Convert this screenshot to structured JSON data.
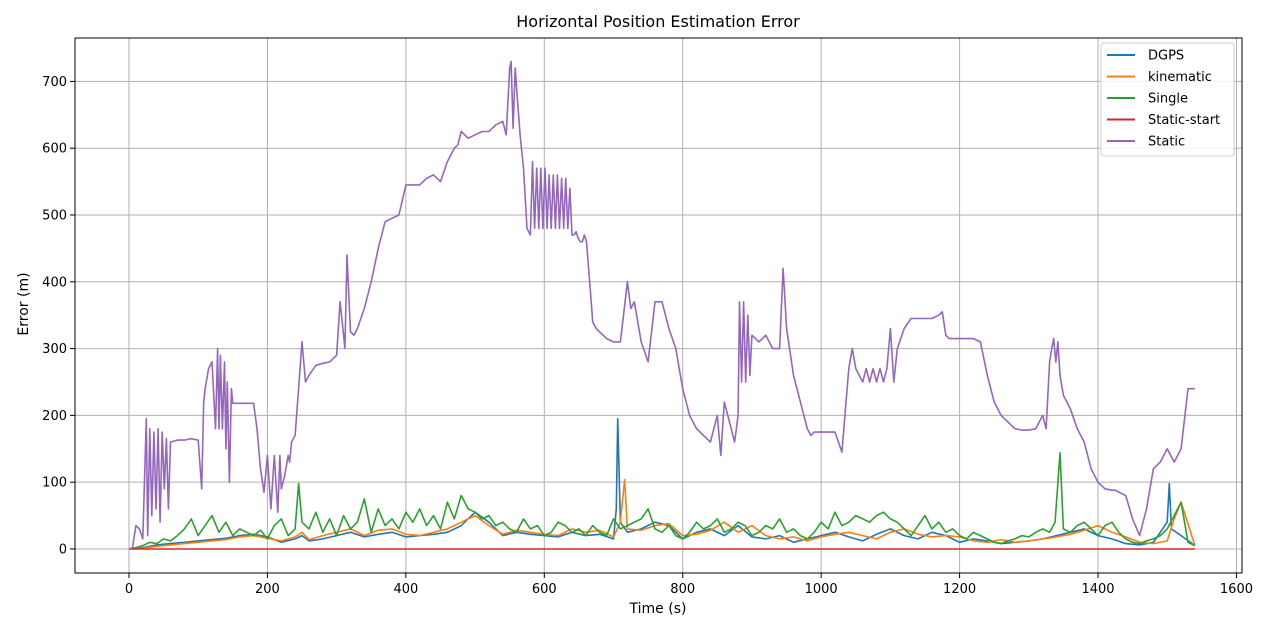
{
  "chart_data": {
    "type": "line",
    "title": "Horizontal Position Estimation Error",
    "xlabel": "Time (s)",
    "ylabel": "Error (m)",
    "xlim": [
      -78,
      1608
    ],
    "ylim": [
      -36,
      765
    ],
    "xticks": [
      0,
      200,
      400,
      600,
      800,
      1000,
      1200,
      1400,
      1600
    ],
    "yticks": [
      0,
      100,
      200,
      300,
      400,
      500,
      600,
      700
    ],
    "grid": true,
    "legend_position": "top-right",
    "series": [
      {
        "name": "DGPS",
        "color": "#1f77b4",
        "x": [
          0,
          20,
          40,
          60,
          80,
          100,
          120,
          140,
          160,
          180,
          200,
          220,
          240,
          250,
          260,
          280,
          300,
          320,
          340,
          360,
          380,
          400,
          420,
          440,
          460,
          480,
          500,
          520,
          540,
          560,
          580,
          600,
          620,
          640,
          660,
          680,
          700,
          704,
          706,
          710,
          720,
          740,
          760,
          780,
          800,
          820,
          840,
          860,
          880,
          900,
          920,
          940,
          960,
          980,
          1000,
          1020,
          1040,
          1060,
          1080,
          1100,
          1120,
          1140,
          1160,
          1180,
          1200,
          1220,
          1240,
          1260,
          1280,
          1300,
          1320,
          1340,
          1360,
          1380,
          1400,
          1420,
          1440,
          1460,
          1480,
          1500,
          1503,
          1506,
          1520,
          1540
        ],
        "y": [
          0,
          2,
          6,
          8,
          10,
          12,
          14,
          16,
          20,
          22,
          18,
          10,
          15,
          20,
          12,
          15,
          20,
          25,
          18,
          22,
          25,
          18,
          20,
          22,
          25,
          35,
          55,
          40,
          20,
          25,
          22,
          20,
          18,
          25,
          20,
          22,
          15,
          60,
          195,
          40,
          25,
          30,
          40,
          35,
          15,
          25,
          30,
          20,
          35,
          18,
          15,
          20,
          10,
          15,
          20,
          25,
          18,
          12,
          22,
          30,
          20,
          15,
          25,
          20,
          10,
          15,
          12,
          8,
          10,
          12,
          15,
          20,
          25,
          30,
          20,
          15,
          8,
          6,
          10,
          40,
          98,
          30,
          20,
          5
        ]
      },
      {
        "name": "kinematic",
        "color": "#ff7f0e",
        "x": [
          0,
          20,
          40,
          60,
          80,
          100,
          120,
          140,
          160,
          180,
          200,
          220,
          240,
          250,
          260,
          280,
          300,
          320,
          340,
          360,
          380,
          400,
          420,
          440,
          460,
          480,
          500,
          520,
          540,
          560,
          580,
          600,
          620,
          640,
          660,
          680,
          700,
          710,
          716,
          720,
          740,
          760,
          780,
          800,
          820,
          840,
          860,
          880,
          900,
          920,
          940,
          960,
          980,
          1000,
          1020,
          1040,
          1060,
          1080,
          1100,
          1120,
          1140,
          1160,
          1180,
          1200,
          1220,
          1240,
          1260,
          1280,
          1300,
          1320,
          1340,
          1360,
          1380,
          1400,
          1420,
          1440,
          1460,
          1480,
          1500,
          1510,
          1520,
          1540
        ],
        "y": [
          0,
          1,
          4,
          6,
          8,
          10,
          12,
          14,
          18,
          20,
          16,
          12,
          18,
          25,
          14,
          20,
          25,
          30,
          20,
          28,
          30,
          22,
          20,
          25,
          30,
          40,
          50,
          35,
          22,
          28,
          25,
          22,
          20,
          30,
          25,
          28,
          18,
          40,
          104,
          30,
          28,
          35,
          38,
          20,
          22,
          28,
          40,
          25,
          35,
          20,
          15,
          18,
          12,
          18,
          22,
          25,
          20,
          15,
          25,
          30,
          22,
          18,
          20,
          18,
          12,
          10,
          14,
          10,
          12,
          15,
          18,
          22,
          28,
          35,
          25,
          18,
          10,
          8,
          12,
          45,
          70,
          5
        ]
      },
      {
        "name": "Single",
        "color": "#2ca02c",
        "x": [
          0,
          10,
          20,
          30,
          40,
          50,
          60,
          70,
          80,
          90,
          100,
          110,
          120,
          130,
          140,
          150,
          160,
          170,
          180,
          190,
          200,
          210,
          220,
          230,
          240,
          245,
          250,
          260,
          270,
          280,
          290,
          300,
          310,
          320,
          330,
          340,
          350,
          360,
          370,
          380,
          390,
          400,
          410,
          420,
          430,
          440,
          450,
          460,
          470,
          480,
          490,
          500,
          510,
          520,
          530,
          540,
          550,
          560,
          570,
          580,
          590,
          600,
          610,
          620,
          630,
          640,
          650,
          660,
          670,
          680,
          690,
          700,
          710,
          720,
          730,
          740,
          750,
          760,
          770,
          780,
          790,
          800,
          810,
          820,
          830,
          840,
          850,
          860,
          870,
          880,
          890,
          900,
          910,
          920,
          930,
          940,
          950,
          960,
          970,
          980,
          990,
          1000,
          1010,
          1020,
          1030,
          1040,
          1050,
          1060,
          1070,
          1080,
          1090,
          1100,
          1110,
          1120,
          1130,
          1140,
          1150,
          1160,
          1170,
          1180,
          1190,
          1200,
          1210,
          1220,
          1230,
          1240,
          1250,
          1260,
          1270,
          1280,
          1290,
          1300,
          1310,
          1320,
          1330,
          1338,
          1345,
          1350,
          1360,
          1370,
          1380,
          1390,
          1400,
          1410,
          1420,
          1430,
          1440,
          1450,
          1460,
          1470,
          1480,
          1490,
          1500,
          1510,
          1520,
          1530,
          1540
        ],
        "y": [
          0,
          2,
          5,
          10,
          8,
          15,
          12,
          20,
          30,
          45,
          20,
          35,
          50,
          25,
          40,
          20,
          30,
          25,
          20,
          28,
          15,
          35,
          45,
          20,
          30,
          98,
          40,
          30,
          55,
          25,
          45,
          20,
          50,
          30,
          40,
          75,
          25,
          60,
          35,
          45,
          30,
          55,
          40,
          60,
          35,
          50,
          30,
          70,
          45,
          80,
          60,
          55,
          45,
          50,
          35,
          40,
          30,
          25,
          45,
          30,
          35,
          20,
          25,
          40,
          35,
          25,
          30,
          20,
          35,
          25,
          20,
          45,
          30,
          35,
          40,
          45,
          60,
          30,
          25,
          35,
          20,
          15,
          25,
          40,
          30,
          35,
          45,
          25,
          30,
          40,
          35,
          20,
          25,
          35,
          30,
          45,
          25,
          30,
          20,
          15,
          25,
          40,
          30,
          55,
          35,
          40,
          50,
          45,
          40,
          50,
          55,
          45,
          40,
          30,
          20,
          35,
          50,
          30,
          40,
          25,
          30,
          20,
          15,
          25,
          20,
          15,
          10,
          8,
          12,
          15,
          20,
          18,
          25,
          30,
          25,
          40,
          144,
          30,
          25,
          35,
          40,
          30,
          20,
          35,
          40,
          25,
          15,
          10,
          8,
          12,
          15,
          20,
          30,
          50,
          70,
          10,
          5
        ]
      },
      {
        "name": "Static-start",
        "color": "#d62728",
        "x": [
          0,
          200,
          400,
          600,
          800,
          1000,
          1200,
          1400,
          1540
        ],
        "y": [
          0,
          0,
          0,
          0,
          0,
          0,
          0,
          0,
          0
        ]
      },
      {
        "name": "Static",
        "color": "#9467bd",
        "x": [
          0,
          5,
          10,
          15,
          20,
          25,
          27,
          30,
          33,
          36,
          39,
          42,
          45,
          48,
          51,
          54,
          57,
          60,
          70,
          80,
          90,
          100,
          105,
          108,
          110,
          115,
          120,
          125,
          128,
          130,
          132,
          135,
          138,
          140,
          142,
          145,
          148,
          150,
          155,
          160,
          170,
          180,
          185,
          190,
          195,
          200,
          205,
          210,
          215,
          218,
          220,
          225,
          230,
          232,
          235,
          240,
          245,
          250,
          255,
          260,
          270,
          280,
          290,
          300,
          305,
          310,
          312,
          315,
          320,
          325,
          330,
          340,
          350,
          360,
          370,
          380,
          390,
          400,
          410,
          420,
          430,
          440,
          450,
          460,
          470,
          475,
          480,
          490,
          500,
          510,
          520,
          530,
          540,
          545,
          550,
          552,
          555,
          558,
          560,
          565,
          570,
          575,
          580,
          583,
          586,
          589,
          592,
          595,
          598,
          601,
          604,
          607,
          610,
          613,
          616,
          619,
          622,
          625,
          628,
          631,
          634,
          637,
          640,
          643,
          646,
          649,
          652,
          655,
          658,
          661,
          664,
          667,
          670,
          675,
          680,
          690,
          700,
          710,
          720,
          725,
          730,
          740,
          750,
          760,
          770,
          780,
          790,
          800,
          810,
          820,
          830,
          840,
          850,
          855,
          860,
          870,
          875,
          880,
          882,
          885,
          888,
          891,
          894,
          897,
          900,
          910,
          920,
          930,
          940,
          945,
          950,
          960,
          970,
          980,
          985,
          990,
          1000,
          1010,
          1020,
          1030,
          1040,
          1045,
          1050,
          1060,
          1065,
          1070,
          1075,
          1080,
          1085,
          1090,
          1095,
          1100,
          1105,
          1110,
          1120,
          1130,
          1140,
          1150,
          1160,
          1170,
          1175,
          1180,
          1185,
          1190,
          1200,
          1210,
          1220,
          1230,
          1240,
          1250,
          1260,
          1270,
          1280,
          1290,
          1300,
          1310,
          1320,
          1325,
          1330,
          1333,
          1336,
          1339,
          1342,
          1345,
          1350,
          1360,
          1370,
          1380,
          1390,
          1400,
          1410,
          1420,
          1425,
          1430,
          1440,
          1450,
          1460,
          1470,
          1480,
          1490,
          1500,
          1510,
          1520,
          1530,
          1540
        ],
        "y": [
          0,
          2,
          35,
          30,
          15,
          195,
          20,
          180,
          50,
          175,
          60,
          180,
          40,
          175,
          90,
          165,
          60,
          160,
          163,
          163,
          165,
          163,
          90,
          220,
          240,
          270,
          280,
          180,
          300,
          180,
          290,
          180,
          280,
          150,
          250,
          100,
          240,
          218,
          218,
          218,
          218,
          218,
          180,
          120,
          85,
          140,
          60,
          140,
          55,
          140,
          90,
          110,
          140,
          130,
          160,
          170,
          240,
          310,
          250,
          260,
          275,
          278,
          280,
          290,
          370,
          320,
          300,
          440,
          325,
          320,
          330,
          360,
          400,
          450,
          490,
          495,
          500,
          545,
          545,
          545,
          555,
          560,
          550,
          580,
          600,
          605,
          625,
          615,
          620,
          625,
          625,
          635,
          640,
          620,
          720,
          730,
          630,
          720,
          690,
          620,
          570,
          480,
          470,
          580,
          480,
          570,
          480,
          570,
          480,
          570,
          480,
          560,
          480,
          560,
          480,
          560,
          480,
          555,
          480,
          555,
          480,
          540,
          470,
          470,
          475,
          465,
          460,
          460,
          470,
          460,
          420,
          380,
          340,
          330,
          325,
          315,
          310,
          310,
          400,
          360,
          370,
          310,
          280,
          370,
          370,
          330,
          300,
          240,
          200,
          180,
          170,
          160,
          200,
          140,
          220,
          180,
          160,
          200,
          370,
          250,
          370,
          250,
          350,
          260,
          320,
          310,
          320,
          300,
          300,
          420,
          330,
          260,
          220,
          180,
          170,
          175,
          175,
          175,
          175,
          145,
          270,
          300,
          270,
          250,
          270,
          250,
          270,
          250,
          270,
          250,
          270,
          330,
          250,
          300,
          330,
          345,
          345,
          345,
          345,
          350,
          355,
          320,
          315,
          315,
          315,
          315,
          315,
          310,
          260,
          220,
          200,
          190,
          180,
          178,
          178,
          180,
          200,
          180,
          280,
          300,
          315,
          280,
          310,
          260,
          230,
          210,
          180,
          160,
          120,
          100,
          90,
          88,
          88,
          85,
          80,
          45,
          20,
          60,
          120,
          130,
          150,
          130,
          150,
          240,
          240
        ]
      }
    ]
  }
}
